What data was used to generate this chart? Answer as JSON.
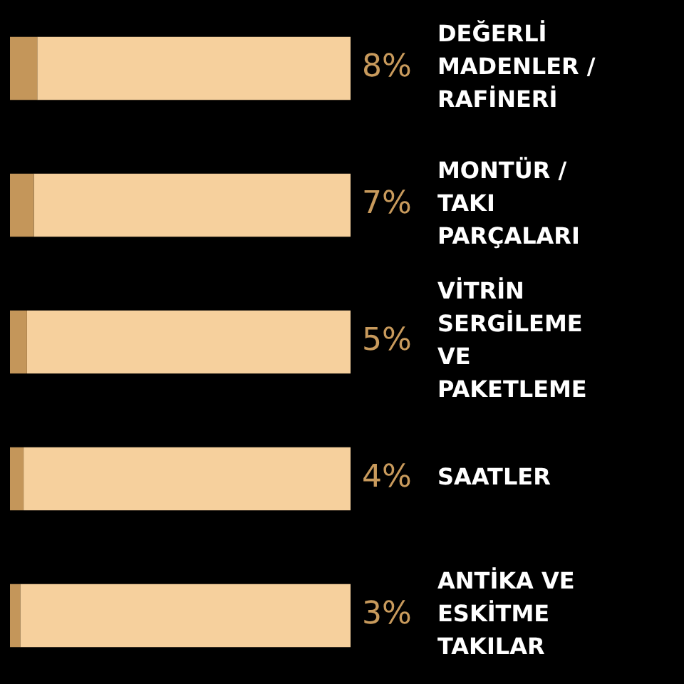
{
  "chart_data": {
    "type": "bar",
    "orientation": "horizontal",
    "stacked": true,
    "categories": [
      "DEĞERLİ MADENLER / RAFİNERİ",
      "MONTÜR / TAKI PARÇALARI",
      "VİTRİN SERGİLEME VE PAKETLEME",
      "SAATLER",
      "ANTİKA VE ESKİTME TAKILAR"
    ],
    "series": [
      {
        "color": "#c4965a",
        "values": [
          8,
          7,
          5,
          4,
          3
        ],
        "value_labels": [
          "8%",
          "7%",
          "5%",
          "4%",
          "3%"
        ]
      },
      {
        "color": "#f6d09d",
        "values": [
          92,
          93,
          95,
          96,
          97
        ]
      }
    ],
    "xlim": [
      0,
      100
    ],
    "tick_labels": "y",
    "legend": false
  }
}
